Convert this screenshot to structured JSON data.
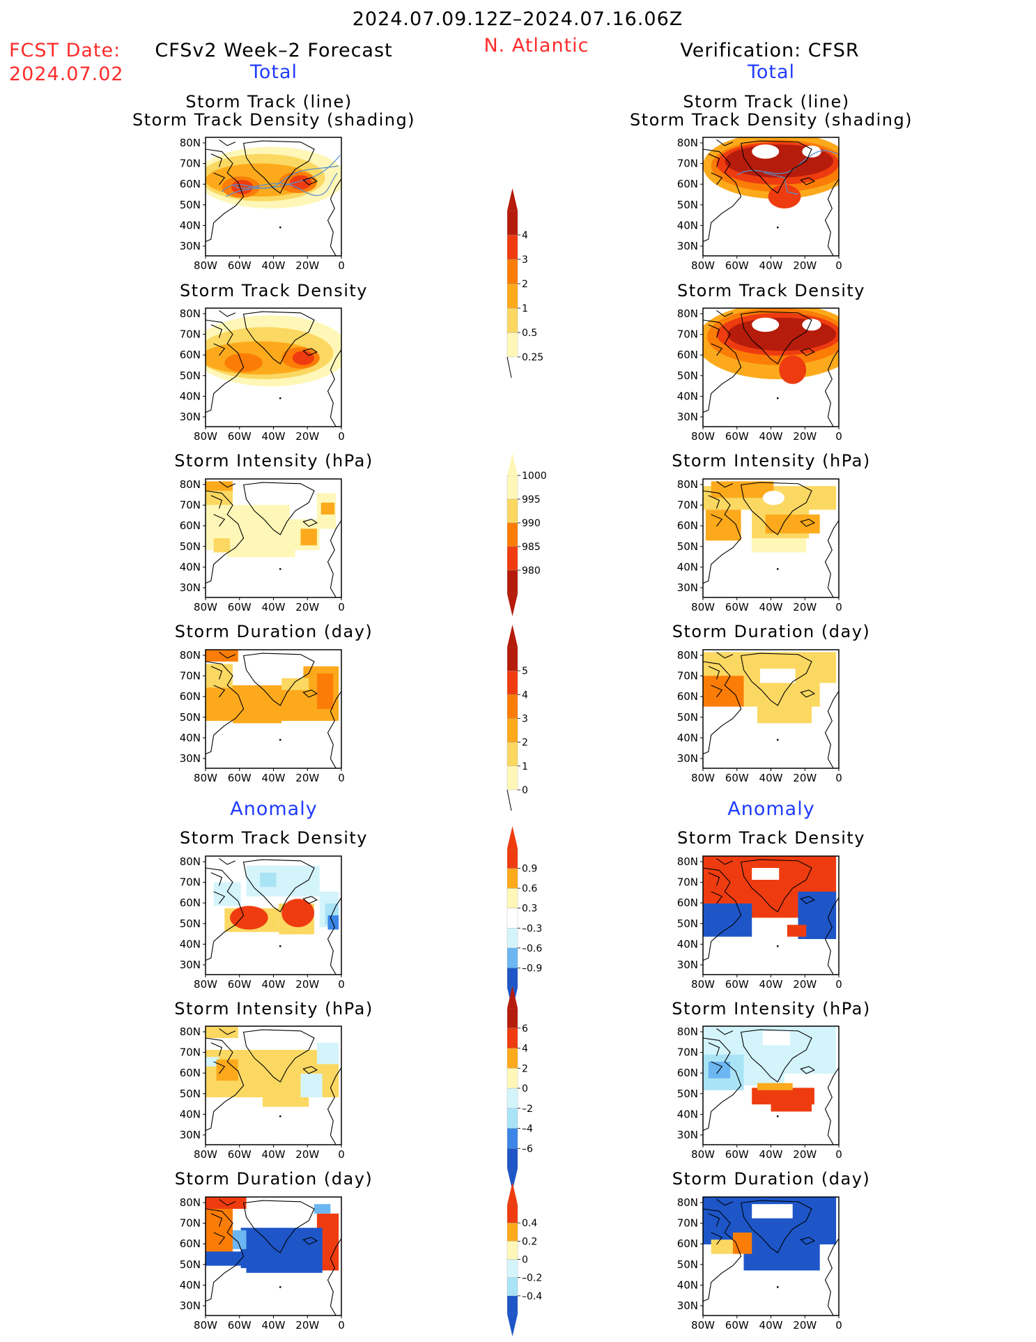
{
  "header": {
    "date_range": "2024.07.09.12Z–2024.07.16.06Z",
    "fcst_label": "FCST Date:",
    "fcst_date": "2024.07.02",
    "model_title": "CFSv2 Week–2 Forecast",
    "region": "N. Atlantic",
    "verification_title": "Verification: CFSR"
  },
  "sections": {
    "total_left": "Total",
    "total_right": "Total",
    "anomaly_left": "Anomaly",
    "anomaly_right": "Anomaly"
  },
  "panel_titles": {
    "track_line": "Storm Track (line)",
    "track_density_shading": "Storm Track Density (shading)",
    "track_density": "Storm Track Density",
    "intensity": "Storm Intensity (hPa)",
    "duration": "Storm Duration (day)"
  },
  "axes": {
    "lon_labels": [
      "80W",
      "60W",
      "40W",
      "20W",
      "0"
    ],
    "lat_labels": [
      "80N",
      "70N",
      "60N",
      "50N",
      "40N",
      "30N"
    ]
  },
  "colorbars": {
    "track_density_total": [
      "0.25",
      "0.5",
      "1",
      "2",
      "3",
      "4"
    ],
    "intensity_total": [
      "1000",
      "995",
      "990",
      "985",
      "980"
    ],
    "duration_total": [
      "0",
      "1",
      "2",
      "3",
      "4",
      "5"
    ],
    "track_density_anomaly": [
      "0.9",
      "0.6",
      "0.3",
      "–0.3",
      "–0.6",
      "–0.9"
    ],
    "intensity_anomaly": [
      "6",
      "4",
      "2",
      "0",
      "–2",
      "–4",
      "–6"
    ],
    "duration_anomaly": [
      "0.4",
      "0.2",
      "0",
      "–0.2",
      "–0.4"
    ]
  },
  "colors": {
    "title_red": "#ff2b2b",
    "section_blue": "#1f3cff",
    "warm_scale": [
      "#fff7b8",
      "#fbd862",
      "#fcaa1c",
      "#fb7d07",
      "#ee3c10",
      "#b61c0c"
    ],
    "cool_scale": [
      "#d4f4fb",
      "#a9e3f6",
      "#6cb6f1",
      "#3b86e6",
      "#1e56c8"
    ],
    "track_line": "#5b8fc7"
  }
}
